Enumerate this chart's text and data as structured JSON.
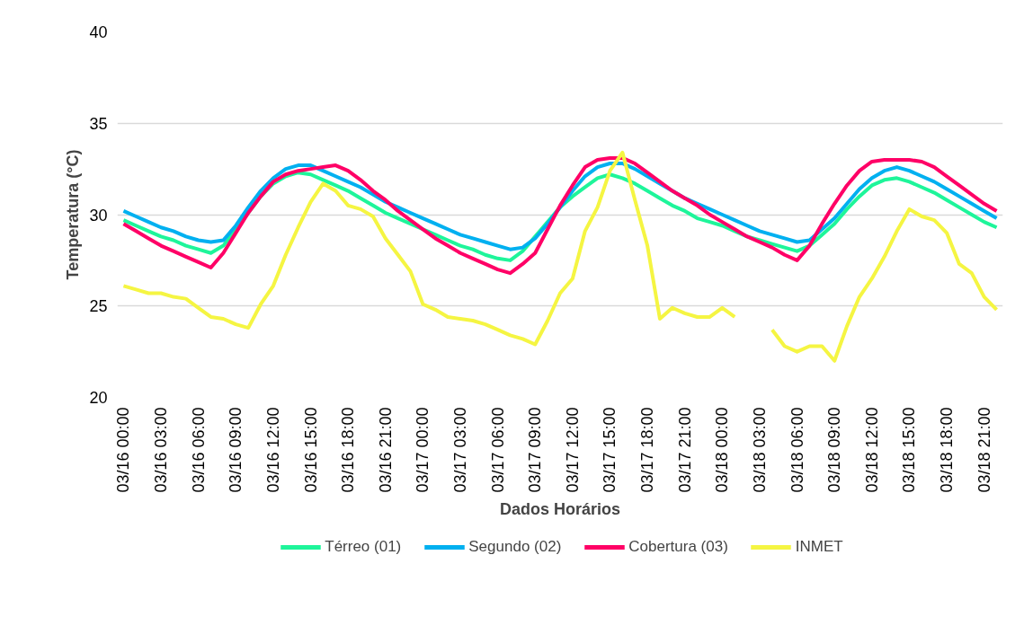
{
  "chart_data": {
    "type": "line",
    "xlabel": "Dados Horários",
    "ylabel": "Temperatura (°C)",
    "categories": [
      "03/16 00:00",
      null,
      null,
      "03/16 03:00",
      null,
      null,
      "03/16 06:00",
      null,
      null,
      "03/16 09:00",
      null,
      null,
      "03/16 12:00",
      null,
      null,
      "03/16 15:00",
      null,
      null,
      "03/16 18:00",
      null,
      null,
      "03/16 21:00",
      null,
      null,
      "03/17 00:00",
      null,
      null,
      "03/17 03:00",
      null,
      null,
      "03/17 06:00",
      null,
      null,
      "03/17 09:00",
      null,
      null,
      "03/17 12:00",
      null,
      null,
      "03/17 15:00",
      null,
      null,
      "03/17 18:00",
      null,
      null,
      "03/17 21:00",
      null,
      null,
      "03/18 00:00",
      null,
      null,
      "03/18 03:00",
      null,
      null,
      "03/18 06:00",
      null,
      null,
      "03/18 09:00",
      null,
      null,
      "03/18 12:00",
      null,
      null,
      "03/18 15:00",
      null,
      null,
      "03/18 18:00",
      null,
      null,
      "03/18 21:00",
      null
    ],
    "series": [
      {
        "name": "Térreo (01)",
        "color": "#1ef59a",
        "values": [
          29.7,
          29.4,
          29.1,
          28.8,
          28.6,
          28.3,
          28.1,
          27.9,
          28.3,
          29.2,
          30.1,
          31.0,
          31.7,
          32.1,
          32.3,
          32.2,
          31.9,
          31.6,
          31.3,
          30.9,
          30.5,
          30.1,
          29.8,
          29.5,
          29.2,
          28.9,
          28.6,
          28.3,
          28.1,
          27.8,
          27.6,
          27.5,
          28.0,
          28.8,
          29.6,
          30.4,
          31.0,
          31.5,
          32.0,
          32.2,
          32.0,
          31.7,
          31.3,
          30.9,
          30.5,
          30.2,
          29.8,
          29.6,
          29.4,
          29.1,
          28.8,
          28.6,
          28.4,
          28.2,
          28.0,
          28.3,
          28.9,
          29.5,
          30.3,
          31.0,
          31.6,
          31.9,
          32.0,
          31.8,
          31.5,
          31.2,
          30.8,
          30.4,
          30.0,
          29.6,
          29.3
        ]
      },
      {
        "name": "Segundo (02)",
        "color": "#00b0f0",
        "values": [
          30.2,
          29.9,
          29.6,
          29.3,
          29.1,
          28.8,
          28.6,
          28.5,
          28.6,
          29.4,
          30.4,
          31.3,
          32.0,
          32.5,
          32.7,
          32.7,
          32.4,
          32.1,
          31.8,
          31.5,
          31.1,
          30.7,
          30.4,
          30.1,
          29.8,
          29.5,
          29.2,
          28.9,
          28.7,
          28.5,
          28.3,
          28.1,
          28.2,
          28.7,
          29.5,
          30.4,
          31.3,
          32.1,
          32.6,
          32.8,
          32.8,
          32.5,
          32.1,
          31.7,
          31.3,
          30.9,
          30.6,
          30.3,
          30.0,
          29.7,
          29.4,
          29.1,
          28.9,
          28.7,
          28.5,
          28.6,
          29.2,
          29.8,
          30.6,
          31.4,
          32.0,
          32.4,
          32.6,
          32.4,
          32.1,
          31.8,
          31.4,
          31.0,
          30.6,
          30.2,
          29.8
        ]
      },
      {
        "name": "Cobertura (03)",
        "color": "#ff0066",
        "values": [
          29.5,
          29.1,
          28.7,
          28.3,
          28.0,
          27.7,
          27.4,
          27.1,
          27.9,
          29.0,
          30.1,
          31.0,
          31.8,
          32.2,
          32.4,
          32.5,
          32.6,
          32.7,
          32.4,
          31.9,
          31.3,
          30.8,
          30.2,
          29.7,
          29.2,
          28.7,
          28.3,
          27.9,
          27.6,
          27.3,
          27.0,
          26.8,
          27.3,
          27.9,
          29.2,
          30.5,
          31.6,
          32.6,
          33.0,
          33.1,
          33.1,
          32.8,
          32.3,
          31.8,
          31.3,
          30.9,
          30.5,
          30.0,
          29.6,
          29.2,
          28.8,
          28.5,
          28.2,
          27.8,
          27.5,
          28.3,
          29.5,
          30.6,
          31.6,
          32.4,
          32.9,
          33.0,
          33.0,
          33.0,
          32.9,
          32.6,
          32.1,
          31.6,
          31.1,
          30.6,
          30.2
        ]
      },
      {
        "name": "INMET",
        "color": "#f5f542",
        "values": [
          26.1,
          25.9,
          25.7,
          25.7,
          25.5,
          25.4,
          24.9,
          24.4,
          24.3,
          24.0,
          23.8,
          25.1,
          26.1,
          27.8,
          29.3,
          30.7,
          31.7,
          31.3,
          30.5,
          30.3,
          29.9,
          28.7,
          27.8,
          26.9,
          25.1,
          24.8,
          24.4,
          24.3,
          24.2,
          24.0,
          23.7,
          23.4,
          23.2,
          22.9,
          24.2,
          25.7,
          26.5,
          29.1,
          30.4,
          32.4,
          33.4,
          30.8,
          28.3,
          24.3,
          24.9,
          24.6,
          24.4,
          24.4,
          24.9,
          24.4,
          null,
          null,
          23.7,
          22.8,
          22.5,
          22.8,
          22.8,
          22.0,
          23.9,
          25.5,
          26.5,
          27.7,
          29.1,
          30.3,
          29.9,
          29.7,
          29.0,
          27.3,
          26.8,
          25.5,
          24.8
        ]
      }
    ],
    "ylim": [
      20,
      40
    ],
    "yticks": [
      20,
      25,
      30,
      35,
      40
    ],
    "grid": "y",
    "legend": "bottom"
  }
}
